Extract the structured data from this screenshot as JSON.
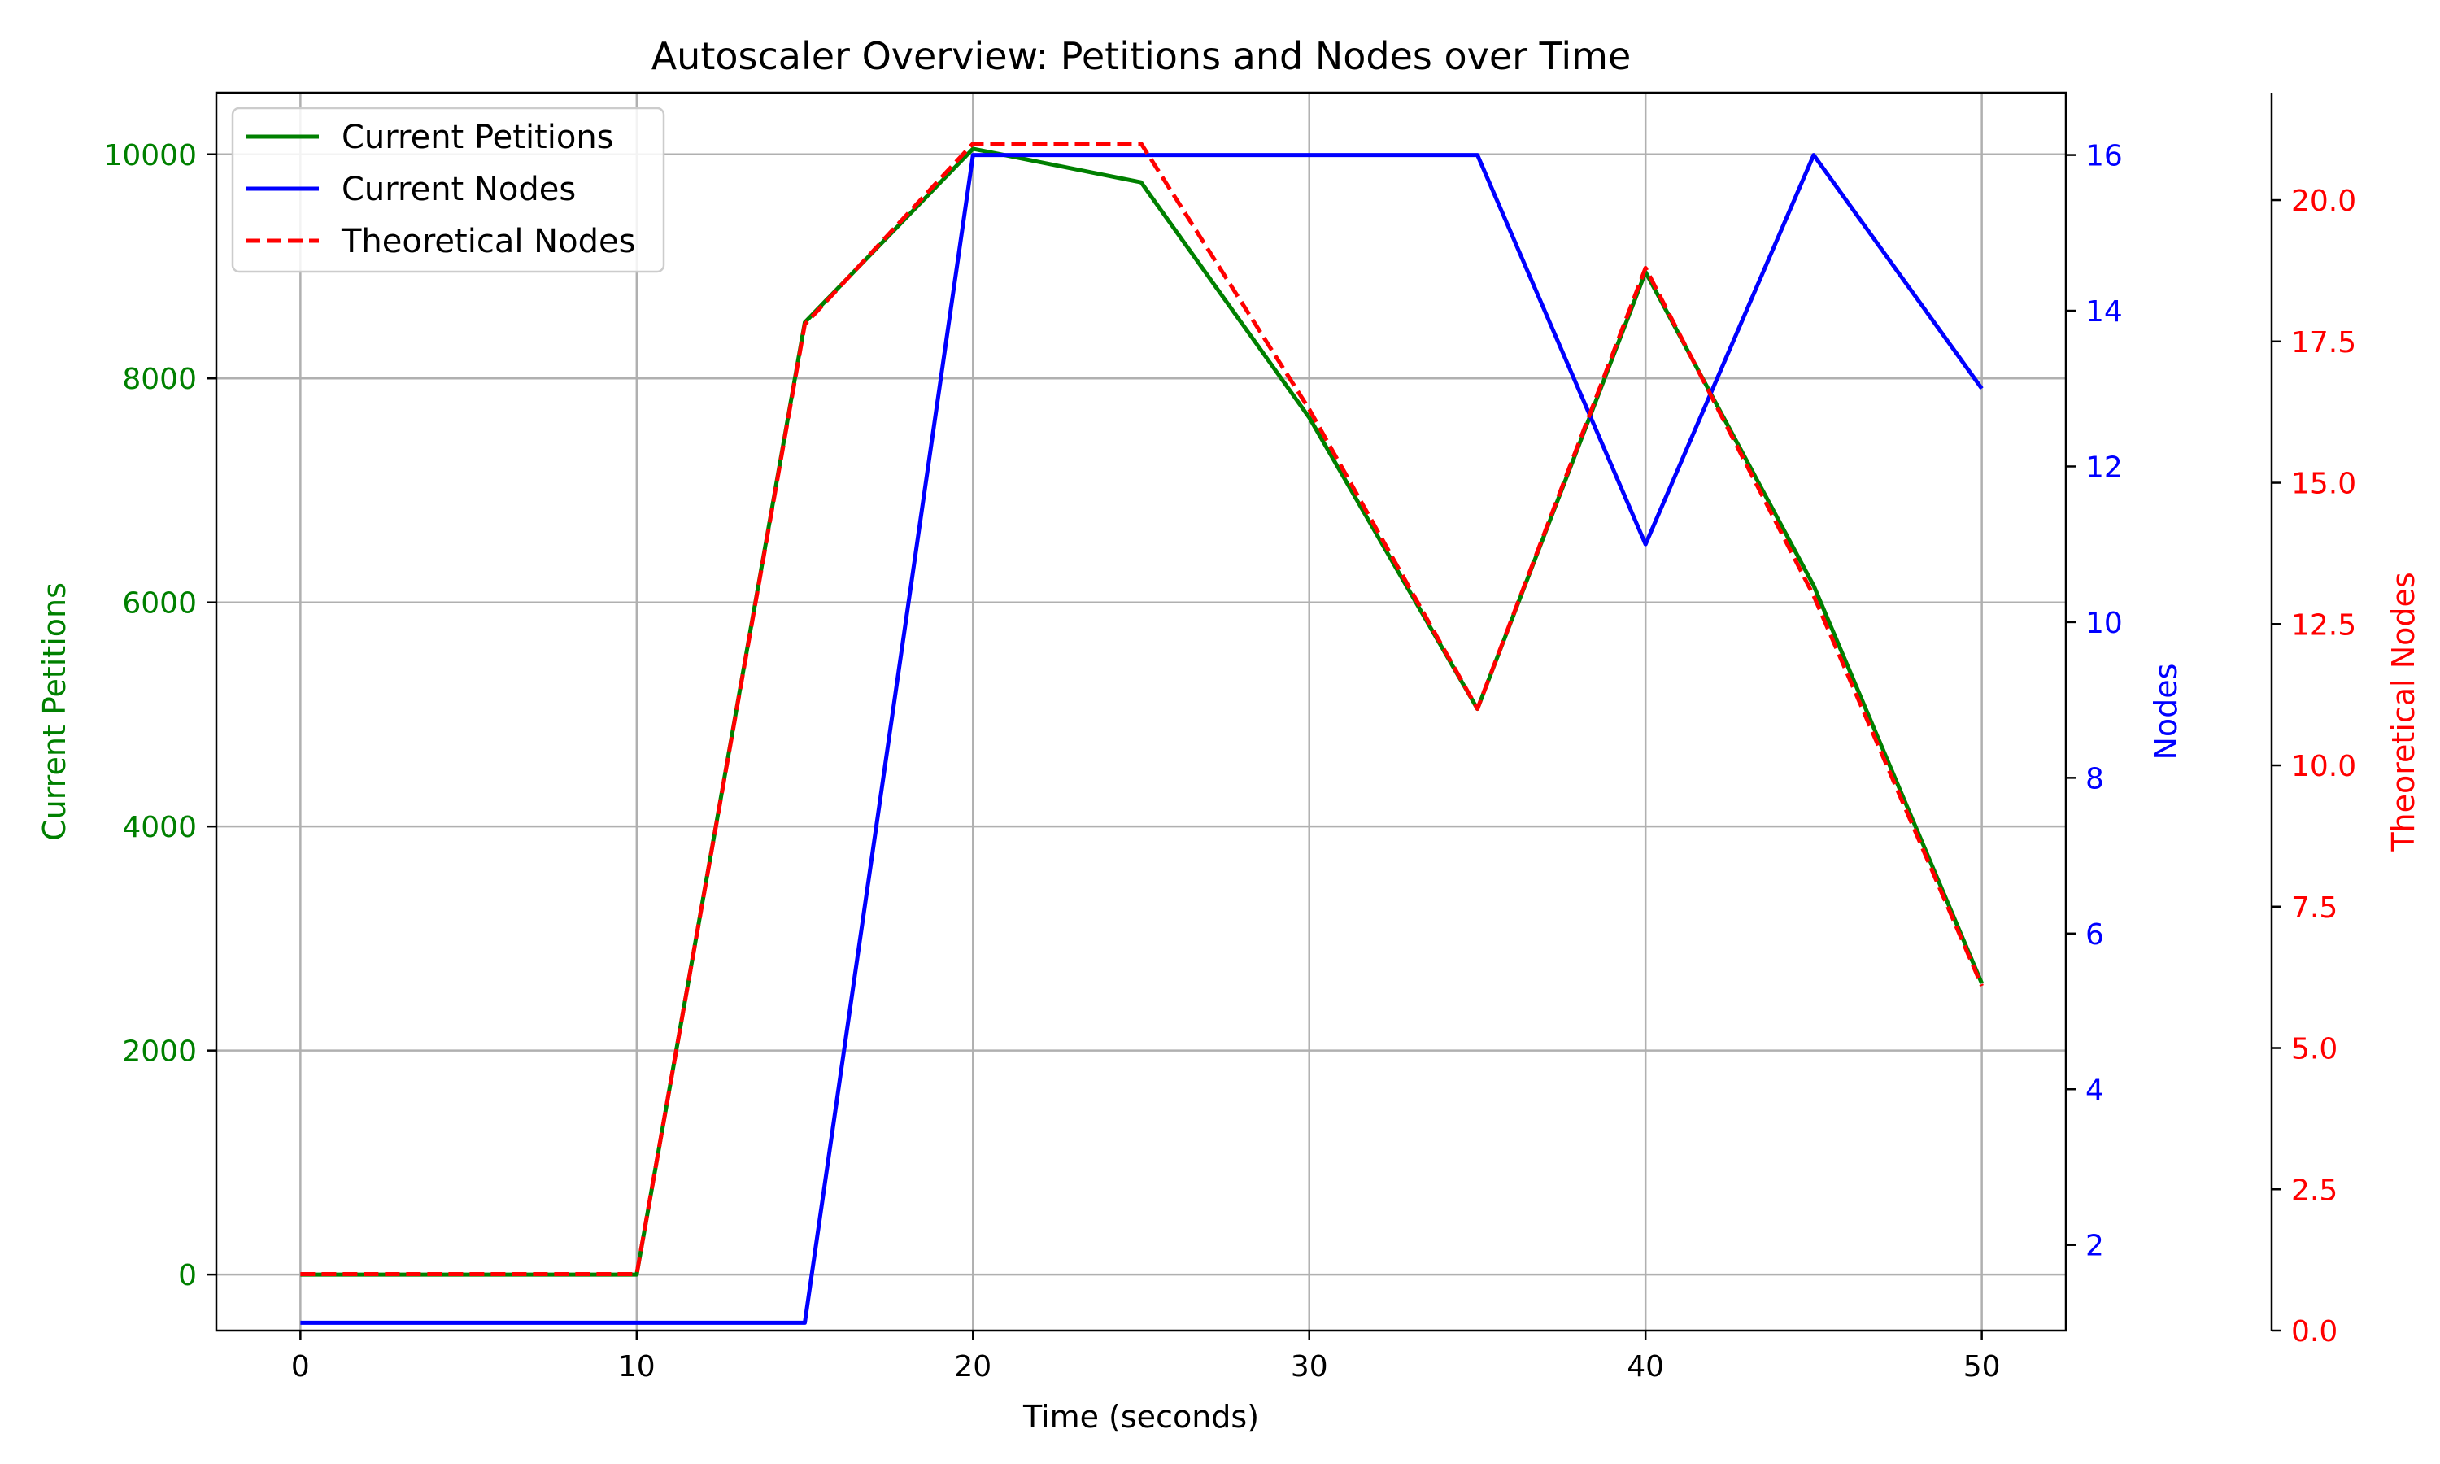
{
  "chart_data": {
    "type": "line",
    "title": "Autoscaler Overview: Petitions and Nodes over Time",
    "xlabel": "Time (seconds)",
    "x": [
      0,
      5,
      10,
      15,
      20,
      25,
      30,
      35,
      40,
      45,
      50
    ],
    "xlim": [
      -2.5,
      52.5
    ],
    "x_ticks": [
      0,
      10,
      20,
      30,
      40,
      50
    ],
    "grid": true,
    "legend_position": "top-left",
    "axes": {
      "left": {
        "label": "Current Petitions",
        "color": "#008000",
        "ylim": [
          -500,
          10550
        ],
        "ticks": [
          0,
          2000,
          4000,
          6000,
          8000,
          10000
        ]
      },
      "right1": {
        "label": "Nodes",
        "color": "#0000ff",
        "ylim": [
          0.9,
          16.8
        ],
        "ticks": [
          2,
          4,
          6,
          8,
          10,
          12,
          14,
          16
        ]
      },
      "right2": {
        "label": "Theoretical Nodes",
        "color": "#ff0000",
        "ylim": [
          0,
          21.9
        ],
        "ticks": [
          "0.0",
          "2.5",
          "5.0",
          "7.5",
          "10.0",
          "12.5",
          "15.0",
          "17.5",
          "20.0"
        ]
      }
    },
    "series": [
      {
        "name": "Current Petitions",
        "axis": "left",
        "color": "#008000",
        "dash": "solid",
        "values": [
          0,
          0,
          0,
          8500,
          10050,
          9750,
          7650,
          5050,
          8950,
          6150,
          2600
        ]
      },
      {
        "name": "Current Nodes",
        "axis": "right1",
        "color": "#0000ff",
        "dash": "solid",
        "values": [
          1,
          1,
          1,
          1,
          16,
          16,
          16,
          16,
          11,
          16,
          13
        ]
      },
      {
        "name": "Theoretical Nodes",
        "axis": "right2",
        "color": "#ff0000",
        "dash": "dashed",
        "values": [
          1,
          1,
          1,
          17.8,
          21.0,
          21.0,
          16.3,
          11.0,
          18.8,
          13.0,
          6.1
        ]
      }
    ]
  }
}
